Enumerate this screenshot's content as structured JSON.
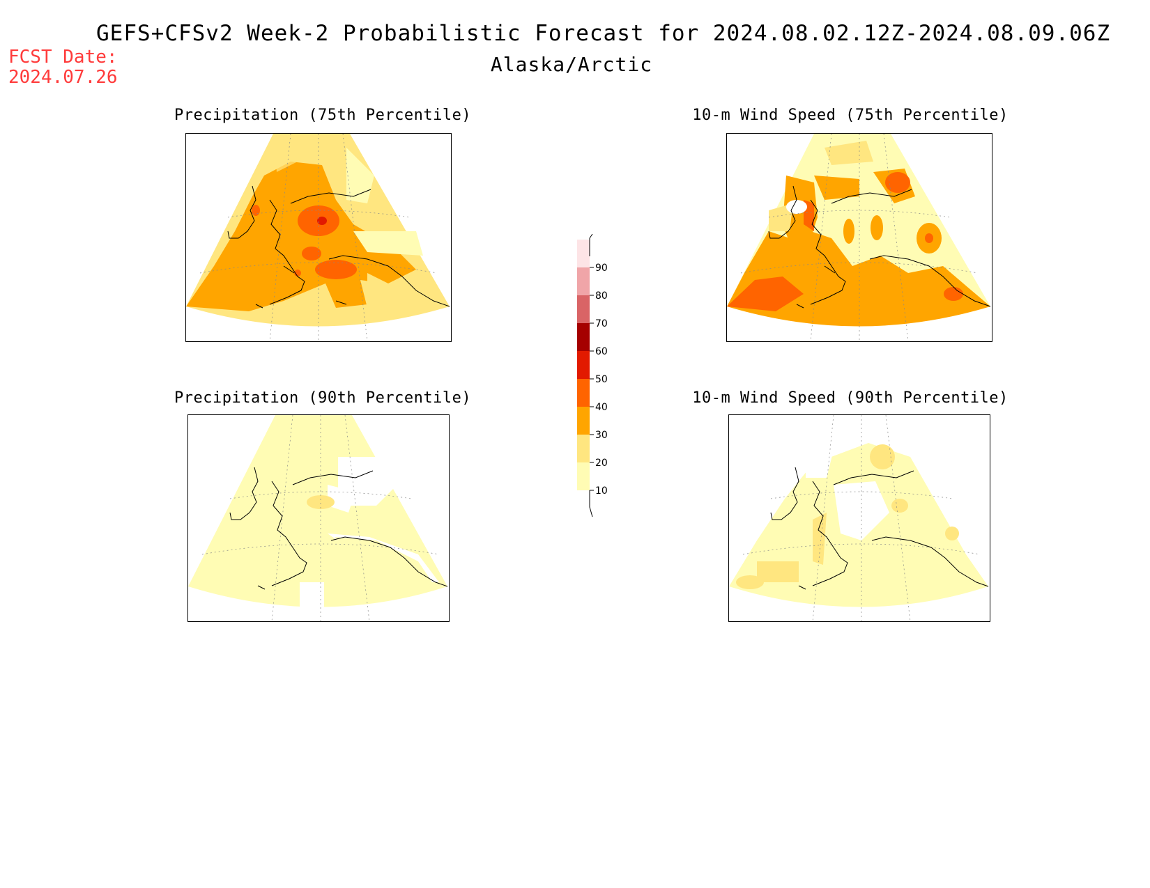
{
  "header": {
    "title": "GEFS+CFSv2 Week-2 Probabilistic Forecast for 2024.08.02.12Z-2024.08.09.06Z",
    "subtitle": "Alaska/Arctic",
    "fcst_label": "FCST Date:",
    "fcst_date": "2024.07.26"
  },
  "panels": [
    {
      "id": "precip75",
      "title": "Precipitation (75th Percentile)"
    },
    {
      "id": "wind75",
      "title": "10-m Wind Speed (75th Percentile)"
    },
    {
      "id": "precip90",
      "title": "Precipitation (90th Percentile)"
    },
    {
      "id": "wind90",
      "title": "10-m Wind Speed (90th Percentile)"
    }
  ],
  "colorbar": {
    "levels": [
      "10",
      "20",
      "30",
      "40",
      "50",
      "60",
      "70",
      "80",
      "90"
    ],
    "colors": [
      "#fffcb4",
      "#ffe680",
      "#ffa500",
      "#ff6400",
      "#e21a00",
      "#a50000",
      "#d96466",
      "#f0a5a8",
      "#fde4e6"
    ]
  }
}
